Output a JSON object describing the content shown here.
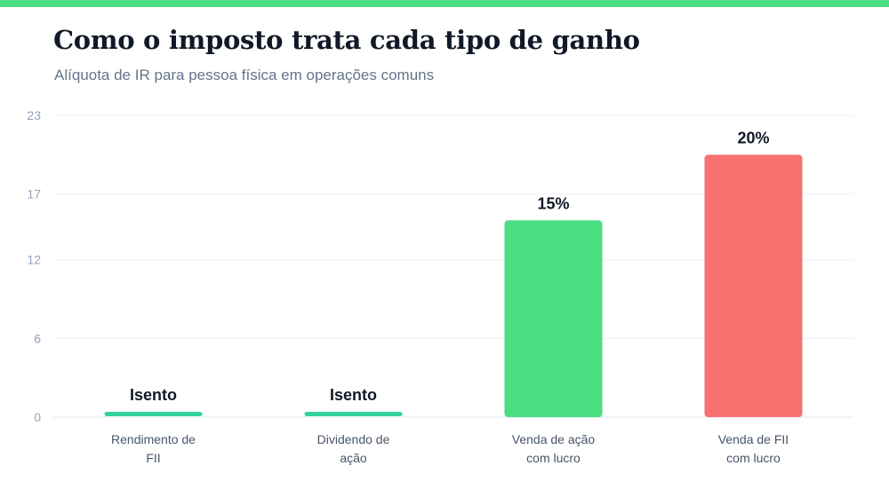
{
  "header": {
    "title": "Como o imposto trata cada tipo de ganho",
    "subtitle": "Alíquota de IR para pessoa física em operações comuns"
  },
  "colors": {
    "accent": "#4ade80",
    "bar_green": "#4ade80",
    "bar_red": "#f87171",
    "exempt": "#34d399"
  },
  "chart_data": {
    "type": "bar",
    "title": "Como o imposto trata cada tipo de ganho",
    "subtitle": "Alíquota de IR para pessoa física em operações comuns",
    "categories": [
      [
        "Rendimento de",
        "FII"
      ],
      [
        "Dividendo de",
        "ação"
      ],
      [
        "Venda de ação",
        "com lucro"
      ],
      [
        "Venda de FII",
        "com lucro"
      ]
    ],
    "values": [
      0,
      0,
      15,
      20
    ],
    "data_labels": [
      "Isento",
      "Isento",
      "15%",
      "20%"
    ],
    "bar_colors": [
      "#34d399",
      "#34d399",
      "#4ade80",
      "#f87171"
    ],
    "yticks": [
      "0",
      "6",
      "12",
      "17",
      "23"
    ],
    "ylim": [
      0,
      23
    ],
    "grid": true,
    "xlabel": "",
    "ylabel": ""
  }
}
